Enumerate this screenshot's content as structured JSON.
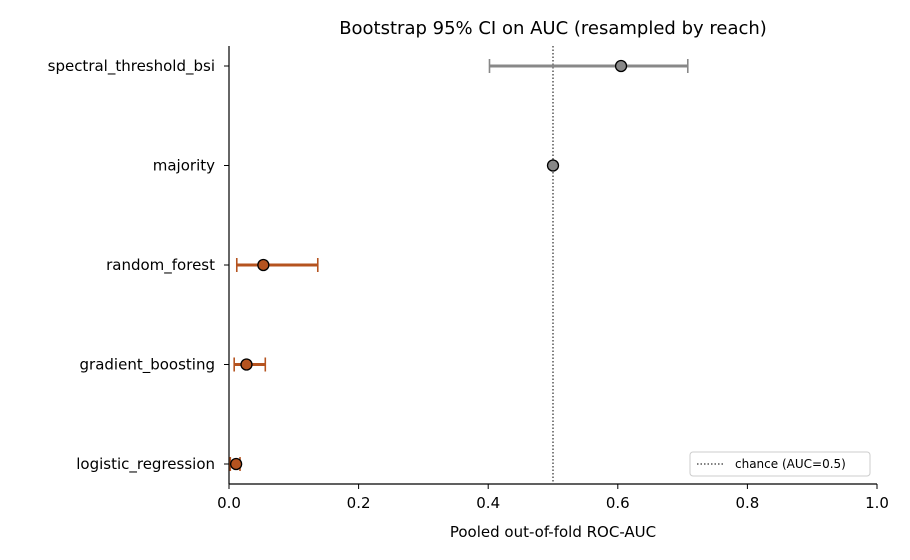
{
  "chart_data": {
    "type": "scatter",
    "title": "Bootstrap 95% CI on AUC (resampled by reach)",
    "xlabel": "Pooled out-of-fold ROC-AUC",
    "ylabel": "",
    "xlim": [
      0.0,
      1.0
    ],
    "xticks": [
      "0.0",
      "0.2",
      "0.4",
      "0.6",
      "0.8",
      "1.0"
    ],
    "categories": [
      "spectral_threshold_bsi",
      "majority",
      "random_forest",
      "gradient_boosting",
      "logistic_regression"
    ],
    "points": [
      {
        "label": "spectral_threshold_bsi",
        "auc": 0.605,
        "ci_low": 0.402,
        "ci_high": 0.708,
        "color": "#888888"
      },
      {
        "label": "majority",
        "auc": 0.5,
        "ci_low": 0.5,
        "ci_high": 0.5,
        "color": "#888888"
      },
      {
        "label": "random_forest",
        "auc": 0.053,
        "ci_low": 0.012,
        "ci_high": 0.137,
        "color": "#b5531f"
      },
      {
        "label": "gradient_boosting",
        "auc": 0.027,
        "ci_low": 0.008,
        "ci_high": 0.056,
        "color": "#b5531f"
      },
      {
        "label": "logistic_regression",
        "auc": 0.011,
        "ci_low": 0.002,
        "ci_high": 0.017,
        "color": "#b5531f"
      }
    ],
    "reference_line": {
      "x": 0.5,
      "label": "chance (AUC=0.5)",
      "style": "dotted"
    },
    "legend_position": "lower-right",
    "grid": false
  }
}
